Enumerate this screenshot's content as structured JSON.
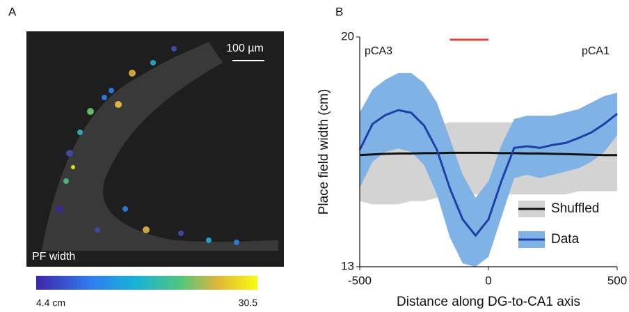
{
  "panel_a": {
    "label": "A",
    "scale_bar": "100 µm",
    "image_label": "PF width",
    "colorbar_min": "4.4 cm",
    "colorbar_max": "30.5"
  },
  "chart_data": {
    "type": "line",
    "panel_label": "B",
    "x_label": "Distance along DG-to-CA1 axis",
    "y_label": "Place field width (cm)",
    "annotations": [
      "pCA3",
      "pCA1"
    ],
    "x": [
      -500,
      -450,
      -400,
      -350,
      -300,
      -250,
      -200,
      -150,
      -100,
      -50,
      0,
      50,
      100,
      150,
      200,
      250,
      300,
      350,
      400,
      450,
      500
    ],
    "series": [
      {
        "name": "Shuffled",
        "color": "#111111",
        "band_color": "#d3d3d3",
        "values": [
          16.4,
          16.42,
          16.44,
          16.45,
          16.45,
          16.46,
          16.46,
          16.47,
          16.47,
          16.47,
          16.47,
          16.46,
          16.46,
          16.45,
          16.45,
          16.44,
          16.43,
          16.42,
          16.41,
          16.4,
          16.4
        ],
        "upper": [
          16.6,
          16.8,
          17.0,
          17.1,
          17.2,
          17.3,
          17.3,
          17.4,
          17.4,
          17.4,
          17.4,
          17.4,
          17.4,
          17.4,
          17.3,
          17.3,
          17.3,
          17.3,
          17.2,
          17.2,
          17.2
        ],
        "lower": [
          15.0,
          14.9,
          14.9,
          14.9,
          15.0,
          15.0,
          15.1,
          15.1,
          15.2,
          15.2,
          15.2,
          15.2,
          15.2,
          15.2,
          15.2,
          15.2,
          15.2,
          15.3,
          15.3,
          15.3,
          15.3
        ]
      },
      {
        "name": "Data",
        "color": "#1f3fa6",
        "band_color": "#7fb2e5",
        "values": [
          16.56,
          17.35,
          17.62,
          17.77,
          17.69,
          17.3,
          16.56,
          15.39,
          14.44,
          13.95,
          14.44,
          15.6,
          16.62,
          16.67,
          16.62,
          16.71,
          16.77,
          16.92,
          17.09,
          17.35,
          17.66
        ],
        "upper": [
          17.7,
          18.4,
          18.7,
          18.9,
          18.9,
          18.6,
          18.0,
          16.9,
          15.8,
          15.1,
          15.6,
          16.7,
          17.5,
          17.6,
          17.6,
          17.6,
          17.7,
          17.8,
          18.0,
          18.2,
          18.3
        ],
        "lower": [
          15.4,
          16.2,
          16.5,
          16.6,
          16.5,
          16.1,
          15.2,
          13.9,
          13.1,
          13.0,
          13.3,
          14.5,
          15.7,
          15.8,
          15.7,
          15.8,
          15.9,
          16.0,
          16.2,
          16.5,
          17.0
        ]
      }
    ],
    "significance_bar": {
      "x": [
        -150,
        0
      ],
      "color": "#e8413a"
    },
    "xlim": [
      -500,
      500
    ],
    "xticks": [
      -500,
      0,
      500
    ],
    "ylim": [
      13,
      20
    ],
    "yticks": [
      13,
      20
    ]
  }
}
